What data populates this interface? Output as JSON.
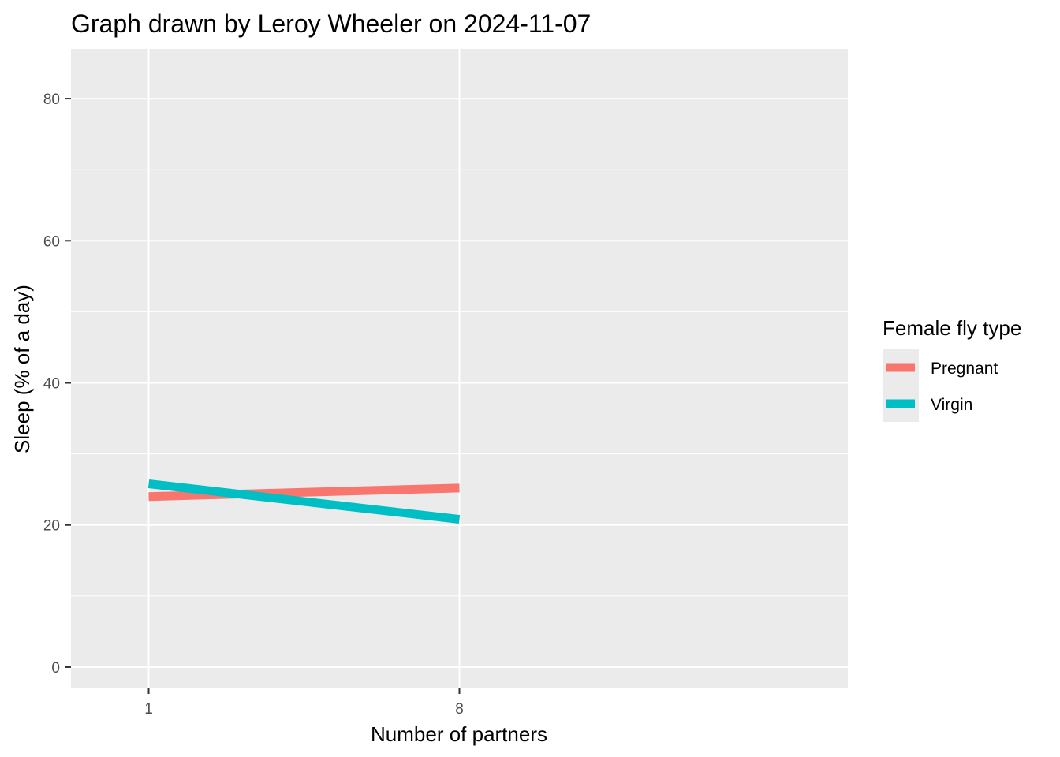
{
  "chart_data": {
    "type": "line",
    "title": "Graph drawn by Leroy Wheeler on 2024-11-07",
    "xlabel": "Number of partners",
    "ylabel": "Sleep (% of a day)",
    "categories": [
      "1",
      "8"
    ],
    "ylim": [
      -3,
      87
    ],
    "yticks": [
      0,
      20,
      40,
      60,
      80
    ],
    "grid": true,
    "legend": {
      "title": "Female fly type",
      "placement": "right"
    },
    "series": [
      {
        "name": "Pregnant",
        "color": "#F8766D",
        "values": [
          24.0,
          25.2
        ]
      },
      {
        "name": "Virgin",
        "color": "#00BFC4",
        "values": [
          25.8,
          20.8
        ]
      }
    ],
    "colors": {
      "panel_background": "#EBEBEB",
      "grid_line": "#FFFFFF",
      "tick_mark": "#333333"
    }
  }
}
